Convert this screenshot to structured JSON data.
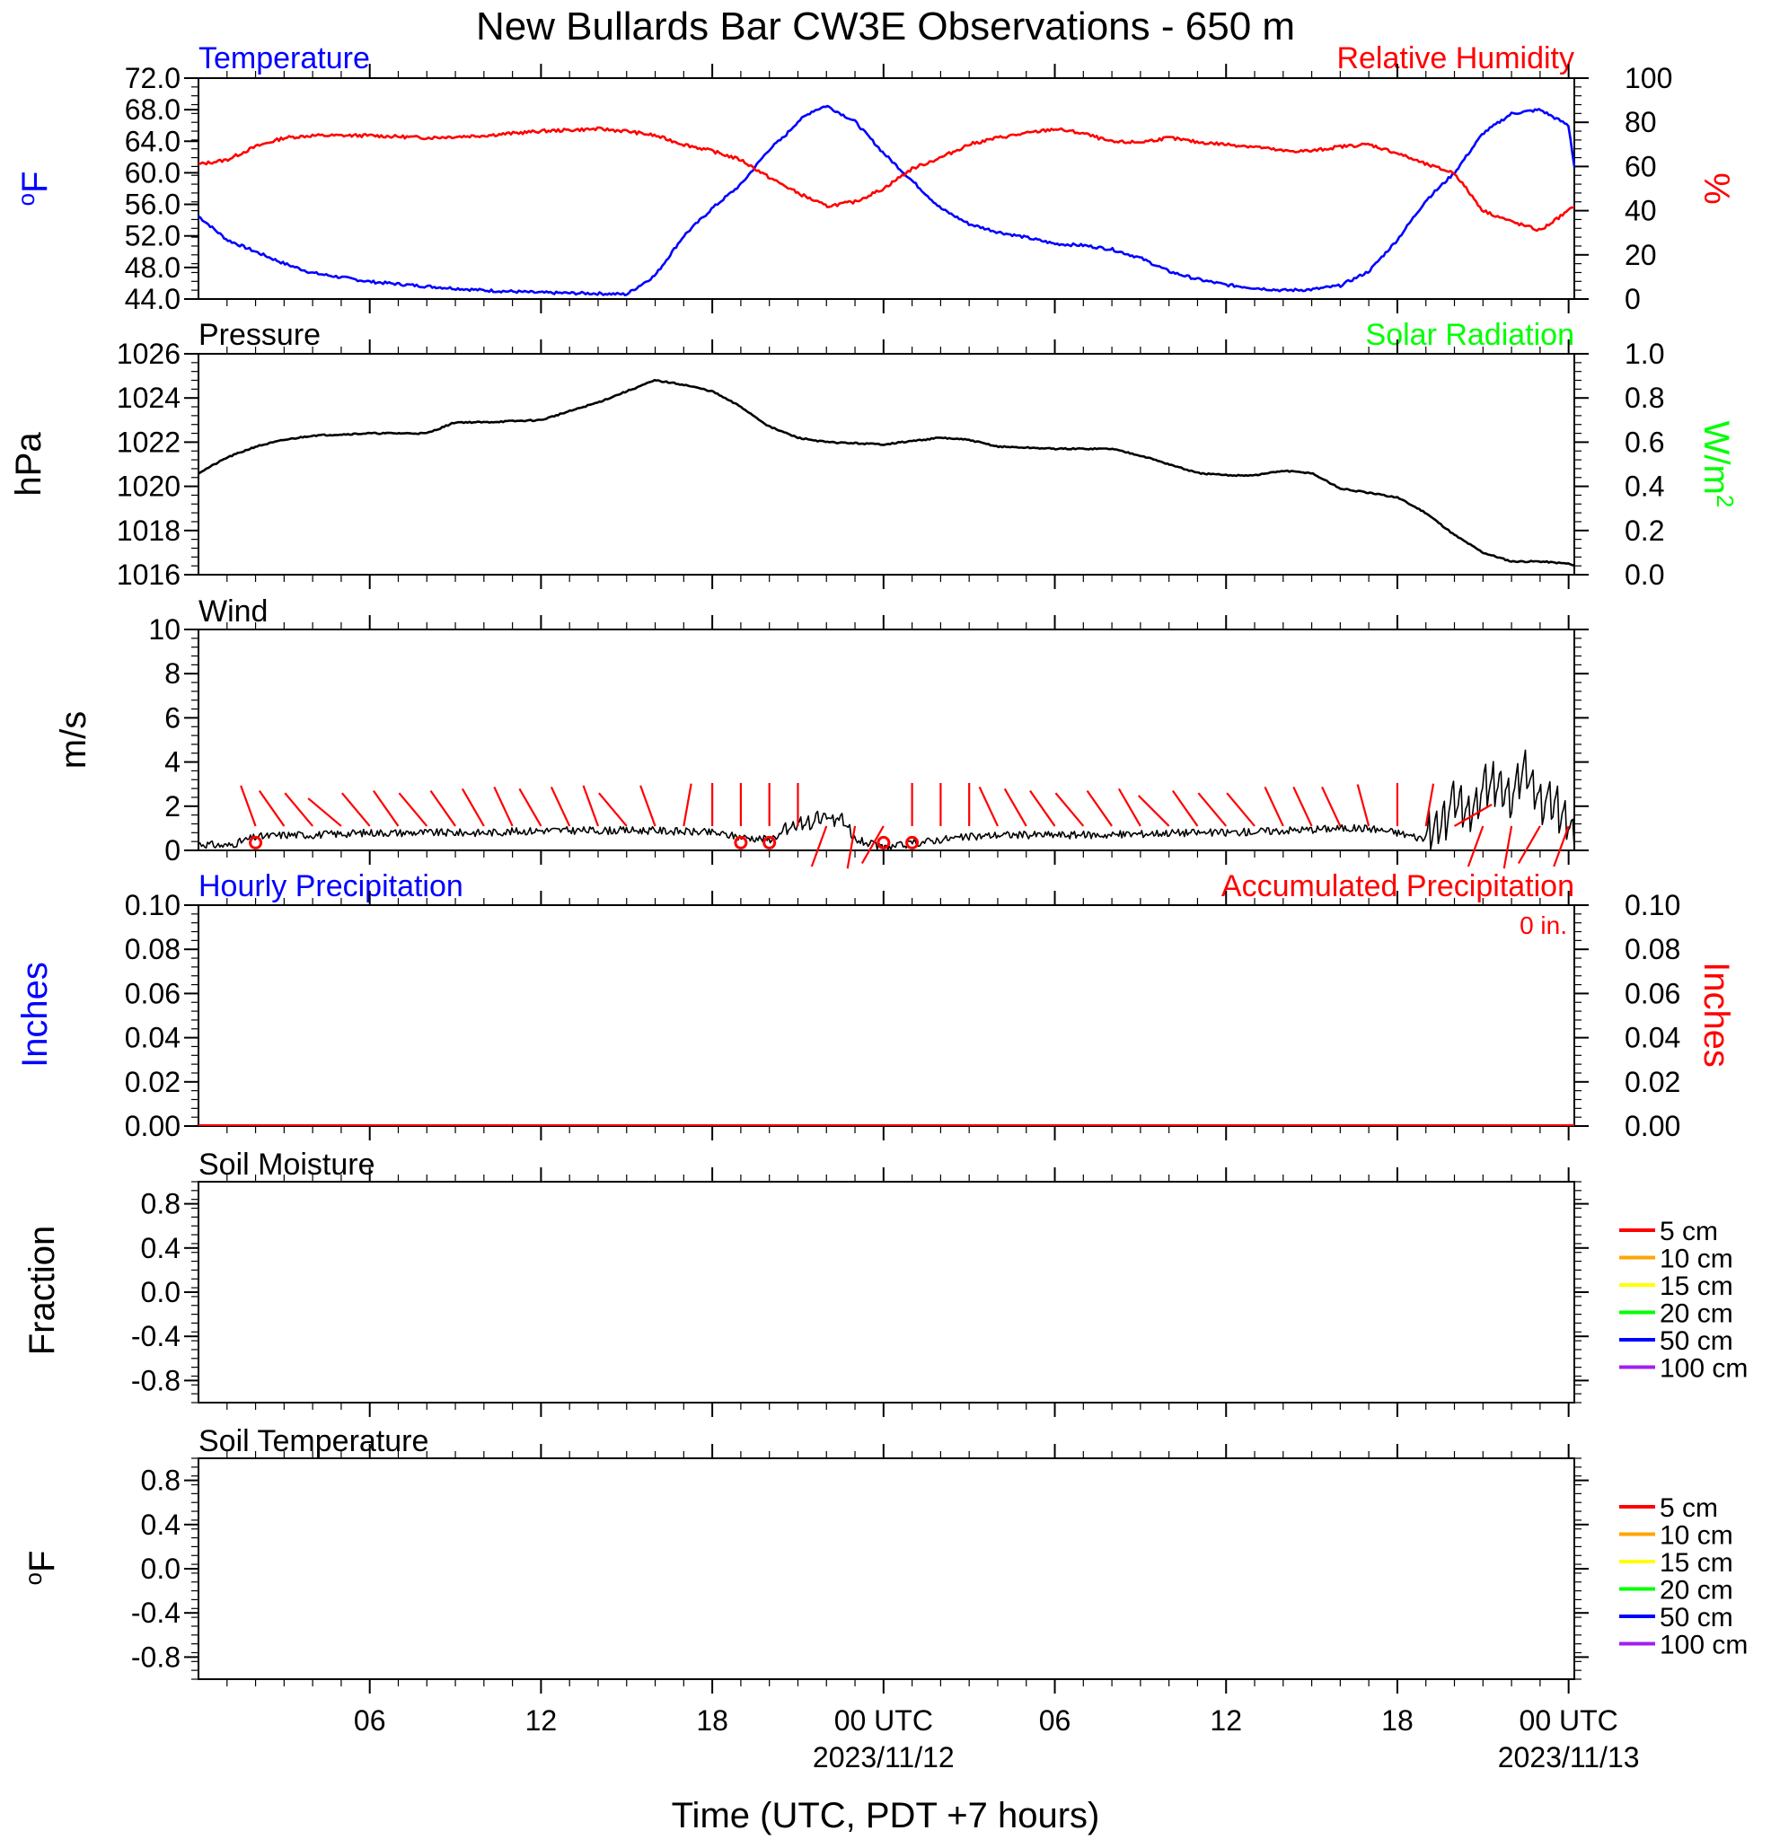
{
  "title": "New Bullards Bar CW3E Observations - 650 m",
  "xlabel": "Time (UTC, PDT +7 hours)",
  "colors": {
    "temperature": "#0000ff",
    "humidity": "#ff0000",
    "pressure": "#000000",
    "solar": "#00ff00",
    "wind": "#000000",
    "barb": "#ff0000",
    "precip_hourly": "#0000ff",
    "precip_accum": "#ff0000"
  },
  "x_ticks": [
    {
      "h": 6,
      "label": "06",
      "date": ""
    },
    {
      "h": 12,
      "label": "12",
      "date": ""
    },
    {
      "h": 18,
      "label": "18",
      "date": ""
    },
    {
      "h": 24,
      "label": "00 UTC",
      "date": "2023/11/12"
    },
    {
      "h": 30,
      "label": "06",
      "date": ""
    },
    {
      "h": 36,
      "label": "12",
      "date": ""
    },
    {
      "h": 42,
      "label": "18",
      "date": ""
    },
    {
      "h": 48,
      "label": "00 UTC",
      "date": "2023/11/13"
    }
  ],
  "soil_legend": [
    {
      "label": "5 cm",
      "color": "#ff0000"
    },
    {
      "label": "10 cm",
      "color": "#ffa500"
    },
    {
      "label": "15 cm",
      "color": "#ffff00"
    },
    {
      "label": "20 cm",
      "color": "#00ff00"
    },
    {
      "label": "50 cm",
      "color": "#0000ff"
    },
    {
      "label": "100 cm",
      "color": "#a020f0"
    }
  ],
  "chart_data": [
    {
      "type": "line",
      "title": "Temperature",
      "title_right": "Relative Humidity",
      "ylabel": "oF",
      "ylabel_right": "%",
      "ylim": [
        44,
        72
      ],
      "yticks": [
        "44.0",
        "48.0",
        "52.0",
        "56.0",
        "60.0",
        "64.0",
        "68.0",
        "72.0"
      ],
      "ylim_right": [
        0,
        100
      ],
      "yticks_right": [
        "0",
        "20",
        "40",
        "60",
        "80",
        "100"
      ],
      "xlim_hours": [
        0,
        48.2
      ],
      "series": [
        {
          "name": "Temperature",
          "axis": "left",
          "x": [
            0,
            1,
            2,
            3,
            4,
            6,
            8,
            10,
            12,
            14,
            15,
            16,
            17,
            18,
            19,
            20,
            20.5,
            21,
            21.5,
            22,
            23,
            24,
            25,
            26,
            27,
            28,
            29,
            30,
            31,
            32,
            33,
            34,
            35,
            36,
            37,
            38,
            39,
            40,
            41,
            42,
            43,
            44,
            45,
            46,
            47,
            48,
            48.2
          ],
          "y": [
            54.5,
            51.5,
            50.0,
            48.5,
            47.3,
            46.2,
            45.6,
            45.1,
            44.8,
            44.7,
            44.6,
            47.0,
            52.0,
            55.5,
            58.5,
            63.0,
            64.5,
            66.5,
            67.8,
            68.5,
            66.5,
            62.5,
            59.0,
            55.5,
            53.5,
            52.5,
            51.8,
            51.0,
            50.8,
            50.3,
            49.2,
            47.5,
            46.5,
            45.8,
            45.4,
            45.1,
            45.2,
            45.7,
            47.5,
            51.5,
            56.5,
            60.0,
            65.0,
            67.5,
            68.0,
            66.0,
            60.8
          ]
        },
        {
          "name": "Relative Humidity",
          "axis": "right",
          "x": [
            0,
            1,
            2,
            3,
            4,
            6,
            8,
            10,
            12,
            14,
            15,
            16,
            17,
            18,
            19,
            20,
            21,
            22,
            23,
            24,
            25,
            26,
            27,
            28,
            29,
            30,
            31,
            32,
            33,
            34,
            35,
            36,
            37,
            38,
            39,
            40,
            41,
            42,
            43,
            44,
            45,
            46,
            47,
            48,
            48.2
          ],
          "y": [
            61,
            63,
            69,
            73,
            74,
            74,
            73,
            74,
            76,
            77,
            76,
            74,
            70,
            67,
            63,
            55,
            48,
            42,
            44,
            50,
            59,
            64,
            70,
            73,
            75,
            77,
            75,
            71,
            71,
            73,
            71,
            70,
            69,
            67,
            67,
            69,
            70,
            66,
            61,
            57,
            40,
            35,
            31,
            40,
            42
          ]
        }
      ]
    },
    {
      "type": "line",
      "title": "Pressure",
      "title_right": "Solar Radiation",
      "ylabel": "hPa",
      "ylabel_right": "W/m2",
      "ylim": [
        1016,
        1026
      ],
      "yticks": [
        "1016",
        "1018",
        "1020",
        "1022",
        "1024",
        "1026"
      ],
      "ylim_right": [
        0,
        1
      ],
      "yticks_right": [
        "0.0",
        "0.2",
        "0.4",
        "0.6",
        "0.8",
        "1.0"
      ],
      "series": [
        {
          "name": "Pressure",
          "axis": "left",
          "x": [
            0,
            1,
            2,
            3,
            4,
            6,
            8,
            9,
            10,
            12,
            13,
            14,
            15,
            16,
            17,
            18,
            19,
            20,
            21,
            22,
            24,
            26,
            27,
            28,
            30,
            32,
            33,
            34,
            35,
            36,
            37,
            38,
            39,
            40,
            41,
            42,
            43,
            44,
            45,
            46,
            47,
            48,
            48.2
          ],
          "y": [
            1020.6,
            1021.3,
            1021.8,
            1022.1,
            1022.3,
            1022.4,
            1022.4,
            1022.9,
            1022.9,
            1023.0,
            1023.4,
            1023.8,
            1024.3,
            1024.8,
            1024.6,
            1024.3,
            1023.6,
            1022.7,
            1022.2,
            1022.0,
            1021.9,
            1022.2,
            1022.1,
            1021.8,
            1021.7,
            1021.7,
            1021.4,
            1021.0,
            1020.6,
            1020.5,
            1020.5,
            1020.7,
            1020.6,
            1019.9,
            1019.7,
            1019.5,
            1018.8,
            1017.8,
            1017.0,
            1016.6,
            1016.6,
            1016.5,
            1016.4
          ]
        }
      ]
    },
    {
      "type": "line",
      "title": "Wind",
      "ylabel": "m/s",
      "ylim": [
        0,
        10
      ],
      "yticks": [
        "0",
        "2",
        "4",
        "6",
        "8",
        "10"
      ],
      "series": [
        {
          "name": "Wind speed",
          "axis": "left",
          "x": [
            0,
            1,
            2,
            3,
            4,
            6,
            8,
            10,
            12,
            14,
            16,
            18,
            19,
            20,
            20.5,
            21,
            21.5,
            22,
            22.5,
            23,
            24,
            25,
            26,
            27,
            28,
            30,
            32,
            34,
            36,
            38,
            40,
            41,
            42,
            43,
            43.5,
            44,
            44.5,
            45,
            45.5,
            46,
            46.5,
            47,
            47.5,
            48,
            48.2
          ],
          "y": [
            0.3,
            0.2,
            0.6,
            0.7,
            0.7,
            0.8,
            0.8,
            0.8,
            0.9,
            0.9,
            0.9,
            0.8,
            0.6,
            0.5,
            0.8,
            1.2,
            1.3,
            1.6,
            1.3,
            0.5,
            0.1,
            0.3,
            0.5,
            0.6,
            0.7,
            0.7,
            0.7,
            0.8,
            0.8,
            0.9,
            1.0,
            1.0,
            0.8,
            0.5,
            1.2,
            2.2,
            1.6,
            2.8,
            3.0,
            2.5,
            3.6,
            2.4,
            2.0,
            1.5,
            0.4
          ]
        },
        {
          "name": "Wind barbs",
          "axis": "left",
          "barb_hours": [
            2,
            3,
            4,
            5,
            6,
            7,
            8,
            9,
            10,
            11,
            12,
            13,
            14,
            15,
            16,
            17,
            18,
            19,
            20,
            21,
            22,
            23,
            24,
            25,
            26,
            27,
            28,
            29,
            30,
            31,
            32,
            33,
            34,
            35,
            36,
            37,
            38,
            39,
            40,
            41,
            42,
            43,
            44,
            45,
            46,
            47,
            48
          ],
          "barb_angles_deg": [
            -20,
            -35,
            -40,
            -50,
            -40,
            -35,
            -40,
            -35,
            -30,
            -25,
            -30,
            -25,
            -20,
            -40,
            -20,
            10,
            0,
            0,
            0,
            0,
            200,
            190,
            210,
            0,
            0,
            0,
            -25,
            -30,
            -35,
            -40,
            -35,
            -30,
            -45,
            -35,
            -40,
            -40,
            -25,
            -25,
            -25,
            -15,
            0,
            10,
            60,
            200,
            190,
            210,
            200
          ]
        }
      ]
    },
    {
      "type": "line",
      "title": "Hourly Precipitation",
      "title_right": "Accumulated Precipitation",
      "annotation": "0 in.",
      "ylabel": "Inches",
      "ylabel_right": "Inches",
      "ylim": [
        0,
        0.1
      ],
      "yticks": [
        "0.00",
        "0.02",
        "0.04",
        "0.06",
        "0.08",
        "0.10"
      ],
      "ylim_right": [
        0,
        0.1
      ],
      "yticks_right": [
        "0.00",
        "0.02",
        "0.04",
        "0.06",
        "0.08",
        "0.10"
      ],
      "series": [
        {
          "name": "Hourly Precipitation",
          "axis": "left",
          "x": [
            0,
            48.2
          ],
          "y": [
            0,
            0
          ]
        },
        {
          "name": "Accumulated Precipitation",
          "axis": "right",
          "x": [
            0,
            48.2
          ],
          "y": [
            0,
            0
          ]
        }
      ]
    },
    {
      "type": "line",
      "title": "Soil Moisture",
      "ylabel": "Fraction",
      "ylim": [
        -1,
        1
      ],
      "yticks": [
        "-0.8",
        "-0.4",
        "0.0",
        "0.4",
        "0.8"
      ],
      "ytick_values": [
        -0.8,
        -0.4,
        0,
        0.4,
        0.8
      ],
      "series": []
    },
    {
      "type": "line",
      "title": "Soil Temperature",
      "ylabel": "oF",
      "ylim": [
        -1,
        1
      ],
      "yticks": [
        "-0.8",
        "-0.4",
        "0.0",
        "0.4",
        "0.8"
      ],
      "ytick_values": [
        -0.8,
        -0.4,
        0,
        0.4,
        0.8
      ],
      "series": []
    }
  ]
}
